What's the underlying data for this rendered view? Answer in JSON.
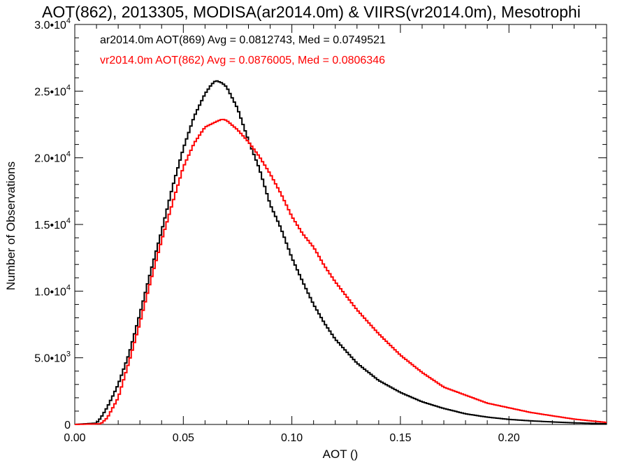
{
  "chart_data": {
    "type": "line",
    "title": "AOT(862), 2013305, MODISA(ar2014.0m) & VIIRS(vr2014.0m), Mesotrophi",
    "xlabel": "AOT ()",
    "ylabel": "Number of Observations",
    "xlim": [
      0.0,
      0.245
    ],
    "ylim": [
      0,
      30000
    ],
    "x_ticks": [
      {
        "value": 0.0,
        "label": "0.00"
      },
      {
        "value": 0.05,
        "label": "0.05"
      },
      {
        "value": 0.1,
        "label": "0.10"
      },
      {
        "value": 0.15,
        "label": "0.15"
      },
      {
        "value": 0.2,
        "label": "0.20"
      }
    ],
    "y_ticks": [
      {
        "value": 0,
        "mant": "0",
        "exp": ""
      },
      {
        "value": 5000,
        "mant": "5.0•10",
        "exp": "3"
      },
      {
        "value": 10000,
        "mant": "1.0•10",
        "exp": "4"
      },
      {
        "value": 15000,
        "mant": "1.5•10",
        "exp": "4"
      },
      {
        "value": 20000,
        "mant": "2.0•10",
        "exp": "4"
      },
      {
        "value": 25000,
        "mant": "2.5•10",
        "exp": "4"
      },
      {
        "value": 30000,
        "mant": "3.0•10",
        "exp": "4"
      }
    ],
    "series": [
      {
        "legend": "ar2014.0m AOT(869) Avg = 0.0812743, Med = 0.0749521",
        "color": "#000000",
        "x": [
          0.0,
          0.01,
          0.012,
          0.015,
          0.018,
          0.02,
          0.025,
          0.03,
          0.035,
          0.04,
          0.045,
          0.05,
          0.055,
          0.06,
          0.063,
          0.065,
          0.068,
          0.07,
          0.075,
          0.08,
          0.085,
          0.09,
          0.095,
          0.1,
          0.105,
          0.11,
          0.115,
          0.12,
          0.13,
          0.14,
          0.15,
          0.16,
          0.17,
          0.18,
          0.19,
          0.2,
          0.21,
          0.22,
          0.23,
          0.245
        ],
        "y": [
          0,
          100,
          500,
          1300,
          2300,
          3000,
          5300,
          8300,
          11500,
          14500,
          17800,
          20700,
          23100,
          24800,
          25500,
          25800,
          25600,
          25300,
          23700,
          21300,
          19200,
          16500,
          14700,
          12500,
          10700,
          9000,
          7600,
          6400,
          4600,
          3300,
          2400,
          1700,
          1200,
          800,
          550,
          380,
          270,
          190,
          120,
          50
        ]
      },
      {
        "legend": "vr2014.0m AOT(862) Avg = 0.0876005, Med = 0.0806346",
        "color": "#ff0000",
        "x": [
          0.0,
          0.012,
          0.015,
          0.018,
          0.02,
          0.025,
          0.03,
          0.035,
          0.04,
          0.045,
          0.05,
          0.055,
          0.06,
          0.065,
          0.068,
          0.07,
          0.075,
          0.08,
          0.085,
          0.09,
          0.095,
          0.1,
          0.105,
          0.11,
          0.115,
          0.12,
          0.13,
          0.14,
          0.15,
          0.16,
          0.17,
          0.18,
          0.19,
          0.2,
          0.21,
          0.22,
          0.23,
          0.245
        ],
        "y": [
          0,
          50,
          500,
          1400,
          2000,
          4700,
          7600,
          10800,
          13800,
          16600,
          19300,
          21100,
          22300,
          22700,
          22900,
          22800,
          22100,
          21200,
          20100,
          18800,
          17300,
          15600,
          14300,
          13300,
          11900,
          10700,
          8600,
          6800,
          5200,
          3900,
          2800,
          2200,
          1600,
          1250,
          900,
          650,
          400,
          150
        ]
      }
    ]
  }
}
